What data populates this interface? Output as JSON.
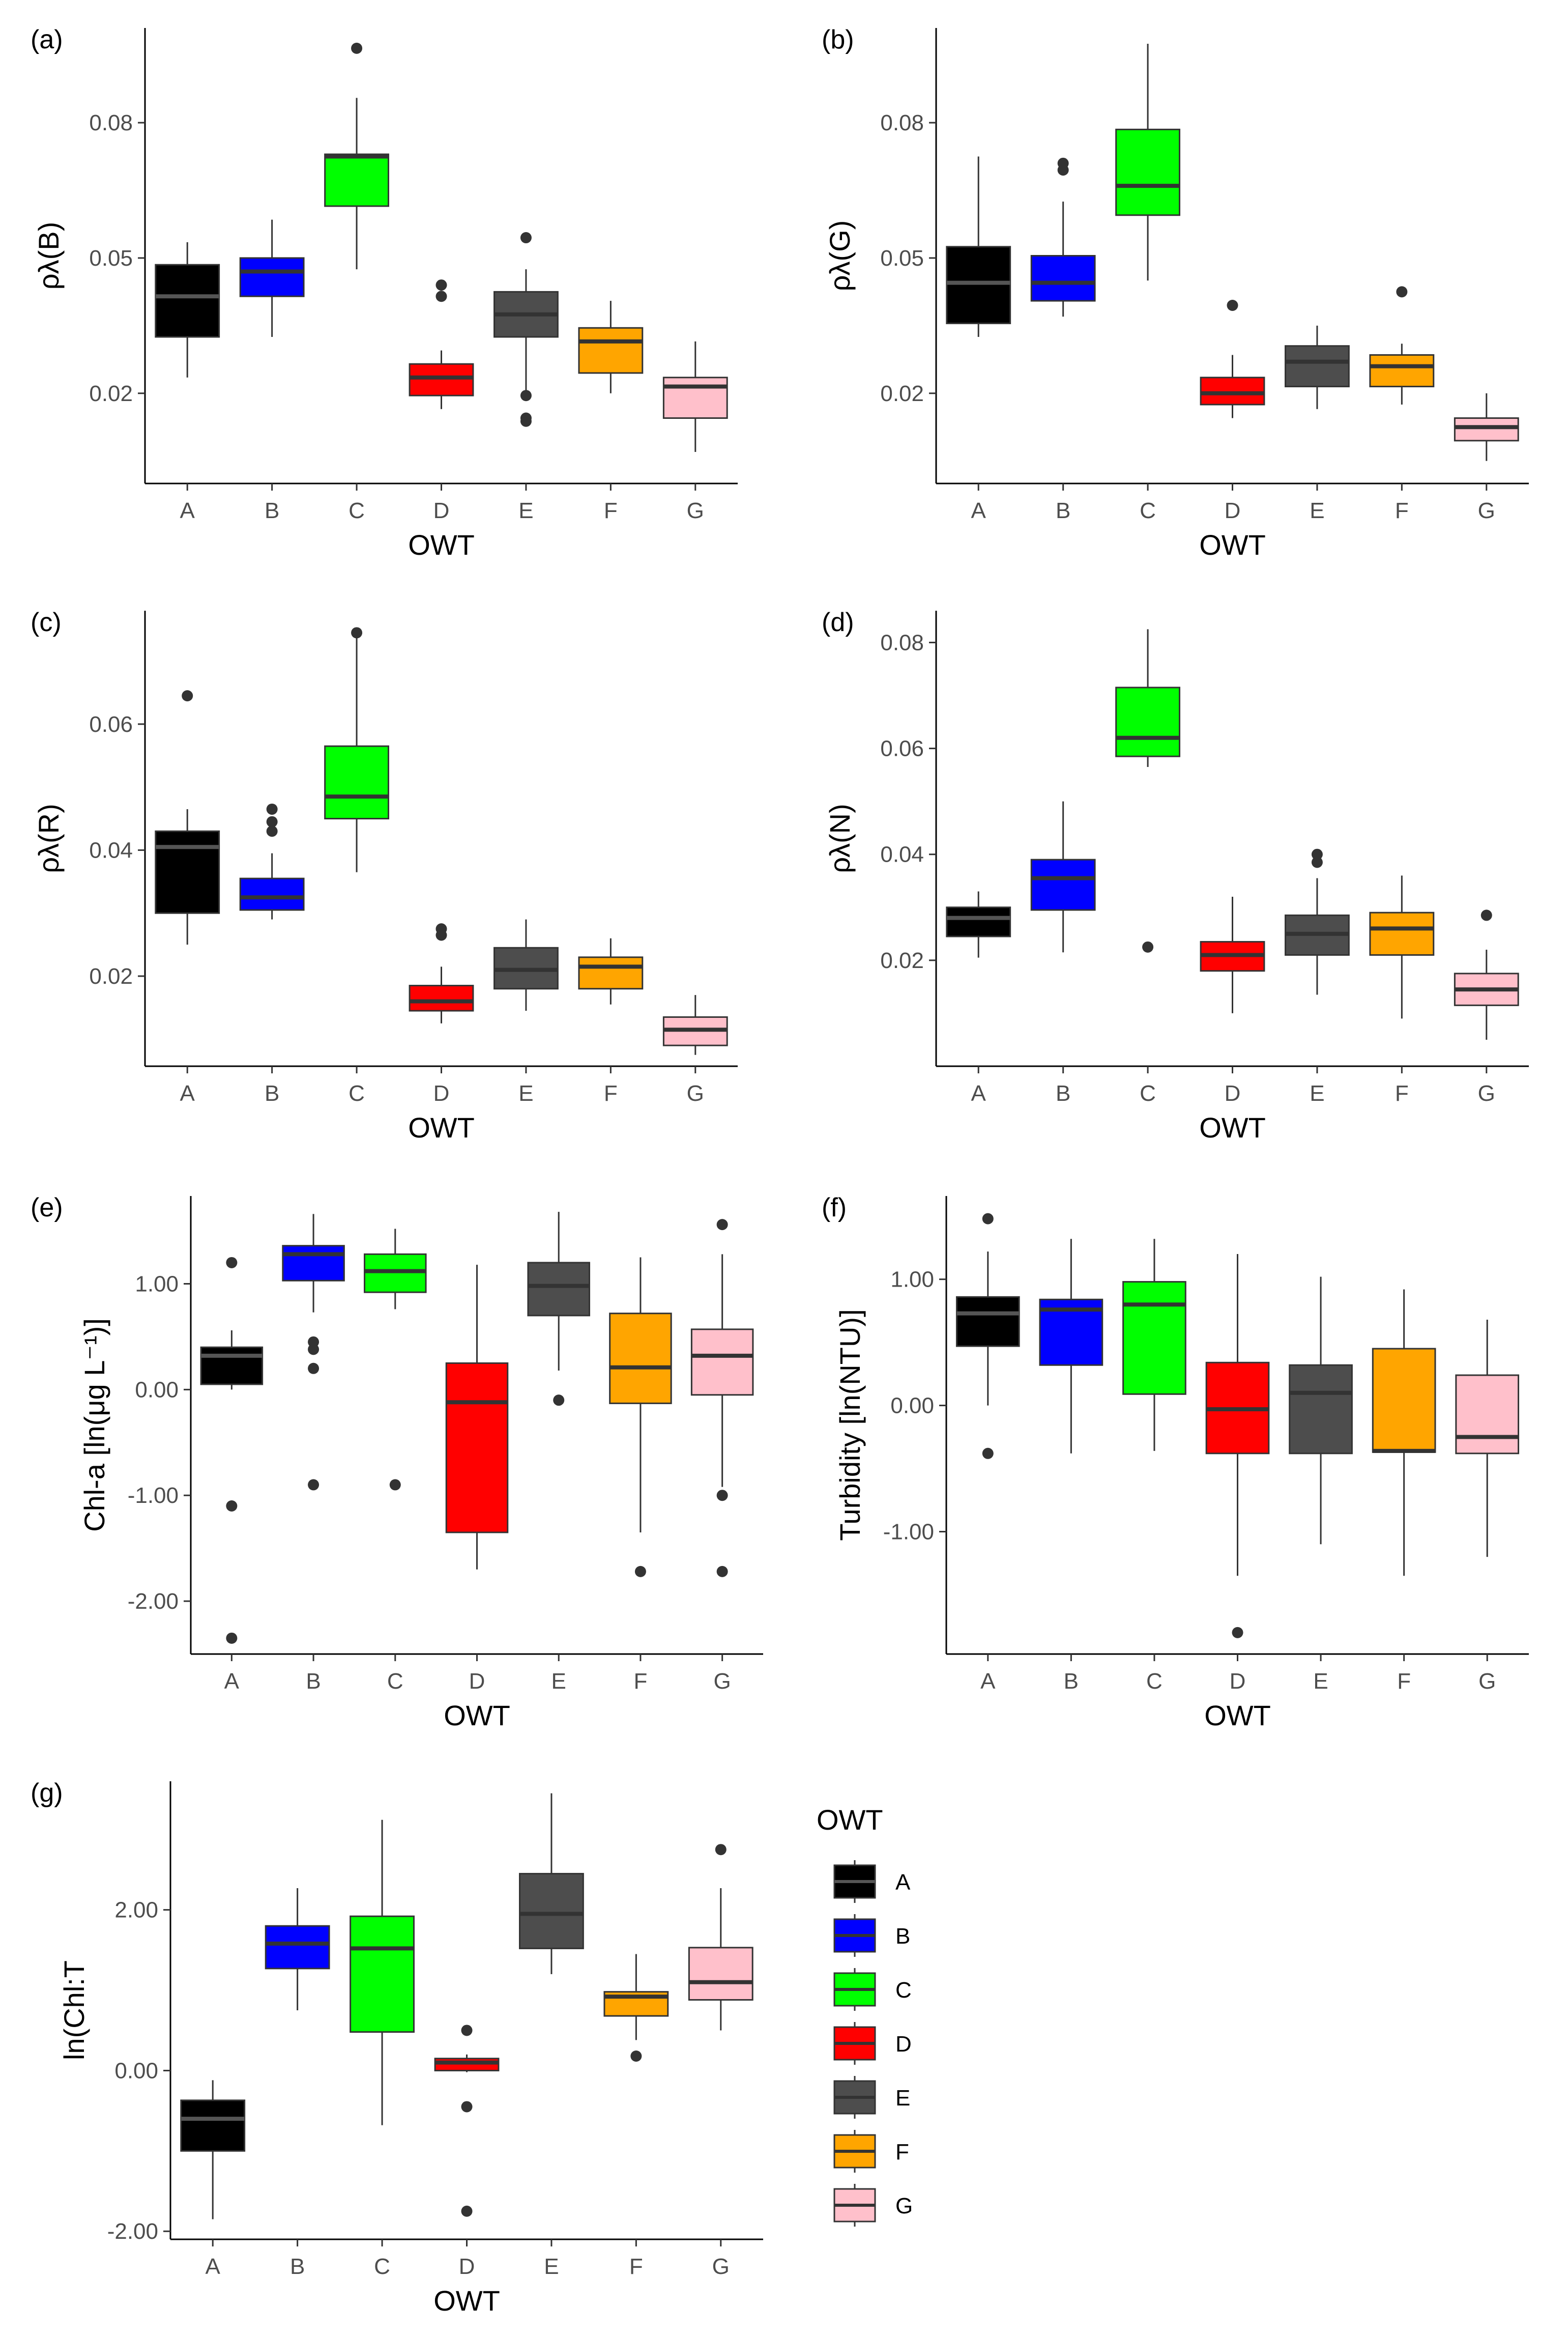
{
  "figure": {
    "legend": {
      "title": "OWT",
      "items": [
        {
          "label": "A",
          "color": "#000000"
        },
        {
          "label": "B",
          "color": "#0000ff"
        },
        {
          "label": "C",
          "color": "#00ff00"
        },
        {
          "label": "D",
          "color": "#ff0000"
        },
        {
          "label": "E",
          "color": "#4d4d4d"
        },
        {
          "label": "F",
          "color": "#ffa500"
        },
        {
          "label": "G",
          "color": "#ffc0cb"
        }
      ]
    }
  },
  "chart_data": [
    {
      "type": "box",
      "panel": "(a)",
      "xlabel": "OWT",
      "ylabel": "ρλ(B)",
      "ylim": [
        0.0,
        0.101
      ],
      "yticks": [
        0.02,
        0.05,
        0.08
      ],
      "ytick_labels": [
        "0.02",
        "0.05",
        "0.08"
      ],
      "categories": [
        "A",
        "B",
        "C",
        "D",
        "E",
        "F",
        "G"
      ],
      "boxes": [
        {
          "q1": 0.0325,
          "median": 0.0415,
          "q3": 0.0485,
          "whisker_low": 0.0235,
          "whisker_high": 0.0535,
          "outliers": []
        },
        {
          "q1": 0.0415,
          "median": 0.047,
          "q3": 0.05,
          "whisker_low": 0.0325,
          "whisker_high": 0.0585,
          "outliers": []
        },
        {
          "q1": 0.0615,
          "median": 0.0725,
          "q3": 0.073,
          "whisker_low": 0.0475,
          "whisker_high": 0.0855,
          "outliers": [
            0.0965
          ]
        },
        {
          "q1": 0.0195,
          "median": 0.0235,
          "q3": 0.0265,
          "whisker_low": 0.0165,
          "whisker_high": 0.0295,
          "outliers": [
            0.0415,
            0.044
          ]
        },
        {
          "q1": 0.0325,
          "median": 0.0375,
          "q3": 0.0425,
          "whisker_low": 0.0205,
          "whisker_high": 0.0475,
          "outliers": [
            0.0545,
            0.0195,
            0.0145,
            0.0138
          ]
        },
        {
          "q1": 0.0245,
          "median": 0.0315,
          "q3": 0.0345,
          "whisker_low": 0.02,
          "whisker_high": 0.0405,
          "outliers": []
        },
        {
          "q1": 0.0145,
          "median": 0.0215,
          "q3": 0.0235,
          "whisker_low": 0.007,
          "whisker_high": 0.0315,
          "outliers": []
        }
      ]
    },
    {
      "type": "box",
      "panel": "(b)",
      "xlabel": "OWT",
      "ylabel": "ρλ(G)",
      "ylim": [
        0.0,
        0.101
      ],
      "yticks": [
        0.02,
        0.05,
        0.08
      ],
      "ytick_labels": [
        "0.02",
        "0.05",
        "0.08"
      ],
      "categories": [
        "A",
        "B",
        "C",
        "D",
        "E",
        "F",
        "G"
      ],
      "boxes": [
        {
          "q1": 0.0355,
          "median": 0.0445,
          "q3": 0.0525,
          "whisker_low": 0.0325,
          "whisker_high": 0.0725,
          "outliers": []
        },
        {
          "q1": 0.0405,
          "median": 0.0445,
          "q3": 0.0505,
          "whisker_low": 0.037,
          "whisker_high": 0.0625,
          "outliers": [
            0.0695,
            0.071
          ]
        },
        {
          "q1": 0.0595,
          "median": 0.066,
          "q3": 0.0785,
          "whisker_low": 0.045,
          "whisker_high": 0.0975,
          "outliers": []
        },
        {
          "q1": 0.0175,
          "median": 0.02,
          "q3": 0.0235,
          "whisker_low": 0.0145,
          "whisker_high": 0.0285,
          "outliers": [
            0.0395
          ]
        },
        {
          "q1": 0.0215,
          "median": 0.027,
          "q3": 0.0305,
          "whisker_low": 0.0165,
          "whisker_high": 0.035,
          "outliers": []
        },
        {
          "q1": 0.0215,
          "median": 0.026,
          "q3": 0.0285,
          "whisker_low": 0.0175,
          "whisker_high": 0.031,
          "outliers": [
            0.0425
          ]
        },
        {
          "q1": 0.0095,
          "median": 0.0125,
          "q3": 0.0145,
          "whisker_low": 0.005,
          "whisker_high": 0.02,
          "outliers": []
        }
      ]
    },
    {
      "type": "box",
      "panel": "(c)",
      "xlabel": "OWT",
      "ylabel": "ρλ(R)",
      "ylim": [
        0.0057,
        0.078
      ],
      "yticks": [
        0.02,
        0.04,
        0.06
      ],
      "ytick_labels": [
        "0.02",
        "0.04",
        "0.06"
      ],
      "categories": [
        "A",
        "B",
        "C",
        "D",
        "E",
        "F",
        "G"
      ],
      "boxes": [
        {
          "q1": 0.03,
          "median": 0.0405,
          "q3": 0.043,
          "whisker_low": 0.025,
          "whisker_high": 0.0465,
          "outliers": [
            0.0645
          ]
        },
        {
          "q1": 0.0305,
          "median": 0.0325,
          "q3": 0.0355,
          "whisker_low": 0.029,
          "whisker_high": 0.0395,
          "outliers": [
            0.043,
            0.0445,
            0.0465
          ]
        },
        {
          "q1": 0.045,
          "median": 0.0485,
          "q3": 0.0565,
          "whisker_low": 0.0365,
          "whisker_high": 0.0745,
          "outliers": [
            0.0745
          ]
        },
        {
          "q1": 0.0145,
          "median": 0.016,
          "q3": 0.0185,
          "whisker_low": 0.0125,
          "whisker_high": 0.0215,
          "outliers": [
            0.0265,
            0.0275
          ]
        },
        {
          "q1": 0.018,
          "median": 0.021,
          "q3": 0.0245,
          "whisker_low": 0.0145,
          "whisker_high": 0.029,
          "outliers": []
        },
        {
          "q1": 0.018,
          "median": 0.0215,
          "q3": 0.023,
          "whisker_low": 0.0155,
          "whisker_high": 0.026,
          "outliers": []
        },
        {
          "q1": 0.009,
          "median": 0.0115,
          "q3": 0.0135,
          "whisker_low": 0.0075,
          "whisker_high": 0.017,
          "outliers": []
        }
      ]
    },
    {
      "type": "box",
      "panel": "(d)",
      "xlabel": "OWT",
      "ylabel": "ρλ(N)",
      "ylim": [
        0.0,
        0.086
      ],
      "yticks": [
        0.02,
        0.04,
        0.06,
        0.08
      ],
      "ytick_labels": [
        "0.02",
        "0.04",
        "0.06",
        "0.08"
      ],
      "categories": [
        "A",
        "B",
        "C",
        "D",
        "E",
        "F",
        "G"
      ],
      "boxes": [
        {
          "q1": 0.0245,
          "median": 0.028,
          "q3": 0.03,
          "whisker_low": 0.0205,
          "whisker_high": 0.033,
          "outliers": []
        },
        {
          "q1": 0.0295,
          "median": 0.0355,
          "q3": 0.039,
          "whisker_low": 0.0215,
          "whisker_high": 0.05,
          "outliers": []
        },
        {
          "q1": 0.0585,
          "median": 0.062,
          "q3": 0.0715,
          "whisker_low": 0.0565,
          "whisker_high": 0.0825,
          "outliers": [
            0.0225
          ]
        },
        {
          "q1": 0.018,
          "median": 0.021,
          "q3": 0.0235,
          "whisker_low": 0.01,
          "whisker_high": 0.032,
          "outliers": []
        },
        {
          "q1": 0.021,
          "median": 0.025,
          "q3": 0.0285,
          "whisker_low": 0.0135,
          "whisker_high": 0.0355,
          "outliers": [
            0.0385,
            0.04
          ]
        },
        {
          "q1": 0.021,
          "median": 0.026,
          "q3": 0.029,
          "whisker_low": 0.009,
          "whisker_high": 0.036,
          "outliers": []
        },
        {
          "q1": 0.0115,
          "median": 0.0145,
          "q3": 0.0175,
          "whisker_low": 0.005,
          "whisker_high": 0.022,
          "outliers": [
            0.0285
          ]
        }
      ]
    },
    {
      "type": "box",
      "panel": "(e)",
      "xlabel": "OWT",
      "ylabel": "Chl-a [ln(μg L⁻¹)]",
      "ylim": [
        -2.5,
        1.83
      ],
      "yticks": [
        -2.0,
        -1.0,
        0.0,
        1.0
      ],
      "ytick_labels": [
        "-2.00",
        "-1.00",
        "0.00",
        "1.00"
      ],
      "categories": [
        "A",
        "B",
        "C",
        "D",
        "E",
        "F",
        "G"
      ],
      "boxes": [
        {
          "q1": 0.05,
          "median": 0.32,
          "q3": 0.4,
          "whisker_low": 0.0,
          "whisker_high": 0.56,
          "outliers": [
            1.2,
            -1.1,
            -2.35
          ]
        },
        {
          "q1": 1.03,
          "median": 1.28,
          "q3": 1.36,
          "whisker_low": 0.73,
          "whisker_high": 1.66,
          "outliers": [
            0.45,
            0.38,
            0.2,
            -0.9
          ]
        },
        {
          "q1": 0.92,
          "median": 1.12,
          "q3": 1.28,
          "whisker_low": 0.76,
          "whisker_high": 1.52,
          "outliers": [
            -0.9
          ]
        },
        {
          "q1": -1.35,
          "median": -0.12,
          "q3": 0.25,
          "whisker_low": -1.7,
          "whisker_high": 1.18,
          "outliers": []
        },
        {
          "q1": 0.7,
          "median": 0.98,
          "q3": 1.2,
          "whisker_low": 0.18,
          "whisker_high": 1.68,
          "outliers": [
            -0.1
          ]
        },
        {
          "q1": -0.13,
          "median": 0.21,
          "q3": 0.72,
          "whisker_low": -1.35,
          "whisker_high": 1.25,
          "outliers": [
            -1.72
          ]
        },
        {
          "q1": -0.05,
          "median": 0.32,
          "q3": 0.57,
          "whisker_low": -0.92,
          "whisker_high": 1.28,
          "outliers": [
            1.56,
            -1.0,
            -1.72
          ]
        }
      ]
    },
    {
      "type": "box",
      "panel": "(f)",
      "xlabel": "OWT",
      "ylabel": "Turbidity [ln(NTU)]",
      "ylim": [
        -1.97,
        1.66
      ],
      "yticks": [
        -1.0,
        0.0,
        1.0
      ],
      "ytick_labels": [
        "-1.00",
        "0.00",
        "1.00"
      ],
      "categories": [
        "A",
        "B",
        "C",
        "D",
        "E",
        "F",
        "G"
      ],
      "boxes": [
        {
          "q1": 0.47,
          "median": 0.73,
          "q3": 0.86,
          "whisker_low": 0.0,
          "whisker_high": 1.22,
          "outliers": [
            1.48,
            -0.38
          ]
        },
        {
          "q1": 0.32,
          "median": 0.76,
          "q3": 0.84,
          "whisker_low": -0.38,
          "whisker_high": 1.32,
          "outliers": []
        },
        {
          "q1": 0.09,
          "median": 0.8,
          "q3": 0.98,
          "whisker_low": -0.36,
          "whisker_high": 1.32,
          "outliers": []
        },
        {
          "q1": -0.38,
          "median": -0.03,
          "q3": 0.34,
          "whisker_low": -1.35,
          "whisker_high": 1.2,
          "outliers": [
            -1.8
          ]
        },
        {
          "q1": -0.38,
          "median": 0.1,
          "q3": 0.32,
          "whisker_low": -1.1,
          "whisker_high": 1.02,
          "outliers": []
        },
        {
          "q1": -0.37,
          "median": -0.36,
          "q3": 0.45,
          "whisker_low": -1.35,
          "whisker_high": 0.92,
          "outliers": []
        },
        {
          "q1": -0.38,
          "median": -0.25,
          "q3": 0.24,
          "whisker_low": -1.2,
          "whisker_high": 0.68,
          "outliers": []
        }
      ]
    },
    {
      "type": "box",
      "panel": "(g)",
      "xlabel": "OWT",
      "ylabel": "ln(Chl:T",
      "ylim": [
        -2.1,
        3.6
      ],
      "yticks": [
        -2.0,
        0.0,
        2.0
      ],
      "ytick_labels": [
        "-2.00",
        "0.00",
        "2.00"
      ],
      "categories": [
        "A",
        "B",
        "C",
        "D",
        "E",
        "F",
        "G"
      ],
      "boxes": [
        {
          "q1": -1.0,
          "median": -0.6,
          "q3": -0.37,
          "whisker_low": -1.85,
          "whisker_high": -0.12,
          "outliers": []
        },
        {
          "q1": 1.27,
          "median": 1.58,
          "q3": 1.8,
          "whisker_low": 0.75,
          "whisker_high": 2.27,
          "outliers": []
        },
        {
          "q1": 0.48,
          "median": 1.52,
          "q3": 1.92,
          "whisker_low": -0.68,
          "whisker_high": 3.12,
          "outliers": []
        },
        {
          "q1": 0.0,
          "median": 0.1,
          "q3": 0.15,
          "whisker_low": -0.02,
          "whisker_high": 0.2,
          "outliers": [
            0.5,
            -0.45,
            -1.75
          ]
        },
        {
          "q1": 1.52,
          "median": 1.95,
          "q3": 2.45,
          "whisker_low": 1.2,
          "whisker_high": 3.45,
          "outliers": []
        },
        {
          "q1": 0.68,
          "median": 0.92,
          "q3": 0.98,
          "whisker_low": 0.38,
          "whisker_high": 1.45,
          "outliers": [
            0.18
          ]
        },
        {
          "q1": 0.88,
          "median": 1.1,
          "q3": 1.53,
          "whisker_low": 0.5,
          "whisker_high": 2.27,
          "outliers": [
            2.75
          ]
        }
      ]
    }
  ]
}
